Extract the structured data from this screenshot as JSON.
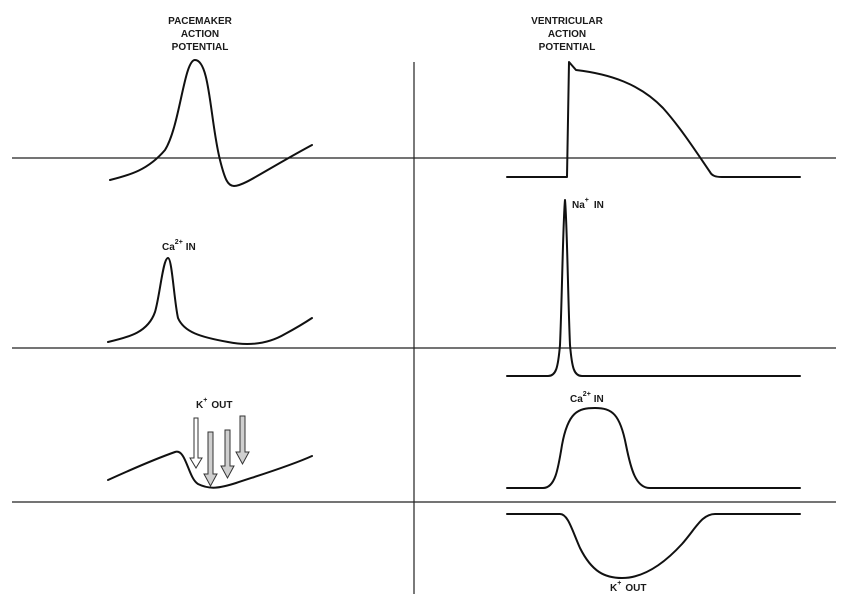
{
  "left_column": {
    "title_lines": [
      "PACEMAKER",
      "ACTION",
      "POTENTIAL"
    ],
    "ca_label": {
      "ion": "Ca",
      "charge": "2+",
      "direction": "IN"
    },
    "k_label": {
      "ion": "K",
      "charge": "+",
      "direction": "OUT"
    }
  },
  "right_column": {
    "title_lines": [
      "VENTRICULAR",
      "ACTION",
      "POTENTIAL"
    ],
    "na_label": {
      "ion": "Na",
      "charge": "+",
      "direction": "IN"
    },
    "ca_label": {
      "ion": "Ca",
      "charge": "2+",
      "direction": "IN"
    },
    "k_label": {
      "ion": "K",
      "charge": "+",
      "direction": "OUT"
    }
  },
  "colors": {
    "stroke": "#111111",
    "background": "#ffffff"
  }
}
